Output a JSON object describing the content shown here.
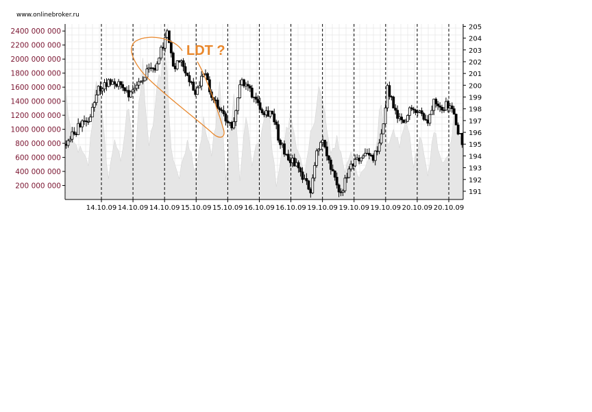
{
  "source_label": "www.onlinebroker.ru",
  "colors": {
    "volume_fill": "#e6e6e6",
    "grid": "#dddddd",
    "separator": "#000000",
    "left_tick_text": "#7a1430",
    "annotation": "#e8862a"
  },
  "chart_data": {
    "type": "candlestick",
    "title": "",
    "annotation": "LDT ?",
    "left_axis": {
      "label": "",
      "ylim": [
        0,
        2500000000
      ],
      "ticks": [
        "200 000 000",
        "400 000 000",
        "600 000 000",
        "800 000 000",
        "1000 000 000",
        "1200 000 000",
        "1400 000 000",
        "1600 000 000",
        "1800 000 000",
        "2000 000 000",
        "2200 000 000",
        "2400 000 000"
      ]
    },
    "right_axis": {
      "label": "",
      "ylim": [
        190.3,
        205.2
      ],
      "ticks": [
        "191",
        "192",
        "193",
        "194",
        "195",
        "196",
        "197",
        "198",
        "199",
        "200",
        "201",
        "202",
        "203",
        "204",
        "205"
      ]
    },
    "x_ticks": [
      "14.10.09",
      "14.10.09",
      "14.10.09",
      "15.10.09",
      "15.10.09",
      "16.10.09",
      "16.10.09",
      "19.10.09",
      "19.10.09",
      "19.10.09",
      "20.10.09",
      "20.10.09"
    ],
    "grid": true,
    "price_path": [
      {
        "i": 0,
        "p": 195.0
      },
      {
        "i": 6,
        "p": 196.4
      },
      {
        "i": 12,
        "p": 197.2
      },
      {
        "i": 16,
        "p": 199.6
      },
      {
        "i": 22,
        "p": 200.4
      },
      {
        "i": 27,
        "p": 200.0
      },
      {
        "i": 32,
        "p": 199.2
      },
      {
        "i": 36,
        "p": 200.3
      },
      {
        "i": 40,
        "p": 201.0
      },
      {
        "i": 45,
        "p": 201.5
      },
      {
        "i": 48,
        "p": 203.5
      },
      {
        "i": 50,
        "p": 204.4
      },
      {
        "i": 53,
        "p": 201.5
      },
      {
        "i": 57,
        "p": 202.4
      },
      {
        "i": 60,
        "p": 200.9
      },
      {
        "i": 64,
        "p": 199.4
      },
      {
        "i": 68,
        "p": 201.2
      },
      {
        "i": 72,
        "p": 199.0
      },
      {
        "i": 77,
        "p": 197.6
      },
      {
        "i": 82,
        "p": 196.2
      },
      {
        "i": 86,
        "p": 200.2
      },
      {
        "i": 90,
        "p": 199.8
      },
      {
        "i": 94,
        "p": 198.8
      },
      {
        "i": 98,
        "p": 197.8
      },
      {
        "i": 102,
        "p": 197.7
      },
      {
        "i": 106,
        "p": 195.0
      },
      {
        "i": 110,
        "p": 193.8
      },
      {
        "i": 114,
        "p": 193.3
      },
      {
        "i": 118,
        "p": 191.8
      },
      {
        "i": 121,
        "p": 191.1
      },
      {
        "i": 124,
        "p": 194.5
      },
      {
        "i": 127,
        "p": 195.2
      },
      {
        "i": 130,
        "p": 193.4
      },
      {
        "i": 134,
        "p": 191.3
      },
      {
        "i": 136,
        "p": 190.8
      },
      {
        "i": 140,
        "p": 192.7
      },
      {
        "i": 144,
        "p": 193.6
      },
      {
        "i": 148,
        "p": 194.2
      },
      {
        "i": 152,
        "p": 193.7
      },
      {
        "i": 156,
        "p": 195.5
      },
      {
        "i": 159,
        "p": 199.8
      },
      {
        "i": 163,
        "p": 197.5
      },
      {
        "i": 167,
        "p": 196.5
      },
      {
        "i": 171,
        "p": 198.3
      },
      {
        "i": 175,
        "p": 197.8
      },
      {
        "i": 179,
        "p": 196.7
      },
      {
        "i": 182,
        "p": 199.0
      },
      {
        "i": 186,
        "p": 198.2
      },
      {
        "i": 190,
        "p": 198.5
      },
      {
        "i": 193,
        "p": 196.6
      },
      {
        "i": 196,
        "p": 195.3
      }
    ],
    "volume_path": [
      {
        "i": 0,
        "v": 1500000000
      },
      {
        "i": 3,
        "v": 800000000
      },
      {
        "i": 7,
        "v": 700000000
      },
      {
        "i": 11,
        "v": 500000000
      },
      {
        "i": 15,
        "v": 1800000000
      },
      {
        "i": 18,
        "v": 1100000000
      },
      {
        "i": 21,
        "v": 300000000
      },
      {
        "i": 24,
        "v": 900000000
      },
      {
        "i": 27,
        "v": 500000000
      },
      {
        "i": 31,
        "v": 1400000000
      },
      {
        "i": 34,
        "v": 600000000
      },
      {
        "i": 38,
        "v": 1900000000
      },
      {
        "i": 41,
        "v": 700000000
      },
      {
        "i": 45,
        "v": 1500000000
      },
      {
        "i": 49,
        "v": 2300000000
      },
      {
        "i": 52,
        "v": 700000000
      },
      {
        "i": 56,
        "v": 300000000
      },
      {
        "i": 60,
        "v": 900000000
      },
      {
        "i": 64,
        "v": 400000000
      },
      {
        "i": 68,
        "v": 1100000000
      },
      {
        "i": 72,
        "v": 600000000
      },
      {
        "i": 76,
        "v": 1700000000
      },
      {
        "i": 79,
        "v": 300000000
      },
      {
        "i": 83,
        "v": 1500000000
      },
      {
        "i": 86,
        "v": 300000000
      },
      {
        "i": 89,
        "v": 1200000000
      },
      {
        "i": 92,
        "v": 500000000
      },
      {
        "i": 96,
        "v": 900000000
      },
      {
        "i": 100,
        "v": 1300000000
      },
      {
        "i": 104,
        "v": 200000000
      },
      {
        "i": 107,
        "v": 700000000
      },
      {
        "i": 111,
        "v": 1200000000
      },
      {
        "i": 115,
        "v": 700000000
      },
      {
        "i": 118,
        "v": 300000000
      },
      {
        "i": 121,
        "v": 900000000
      },
      {
        "i": 125,
        "v": 1600000000
      },
      {
        "i": 128,
        "v": 1200000000
      },
      {
        "i": 131,
        "v": 600000000
      },
      {
        "i": 134,
        "v": 900000000
      },
      {
        "i": 138,
        "v": 400000000
      },
      {
        "i": 141,
        "v": 700000000
      },
      {
        "i": 145,
        "v": 300000000
      },
      {
        "i": 149,
        "v": 500000000
      },
      {
        "i": 153,
        "v": 700000000
      },
      {
        "i": 156,
        "v": 1400000000
      },
      {
        "i": 159,
        "v": 800000000
      },
      {
        "i": 162,
        "v": 1100000000
      },
      {
        "i": 165,
        "v": 700000000
      },
      {
        "i": 168,
        "v": 1200000000
      },
      {
        "i": 172,
        "v": 500000000
      },
      {
        "i": 176,
        "v": 900000000
      },
      {
        "i": 179,
        "v": 300000000
      },
      {
        "i": 182,
        "v": 1000000000
      },
      {
        "i": 186,
        "v": 500000000
      },
      {
        "i": 189,
        "v": 600000000
      },
      {
        "i": 192,
        "v": 1200000000
      },
      {
        "i": 196,
        "v": 800000000
      }
    ],
    "bar_count": 197
  }
}
